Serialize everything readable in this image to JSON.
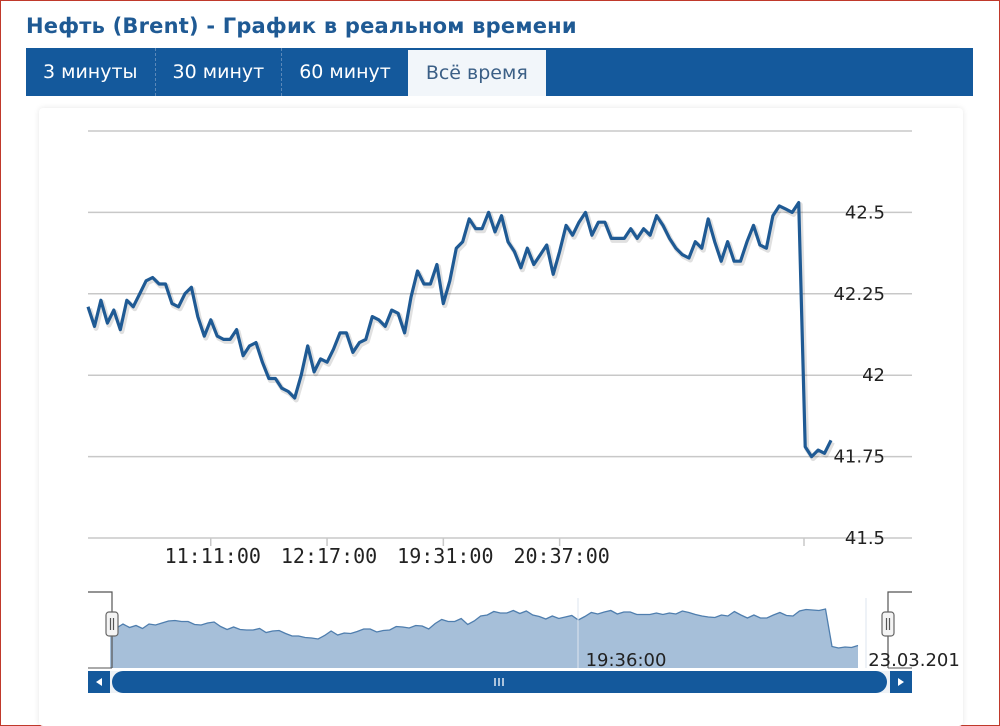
{
  "page_title": "Нефть (Brent) - График в реальном времени",
  "tabs": [
    {
      "label": "3 минуты",
      "active": false
    },
    {
      "label": "30 минут",
      "active": false
    },
    {
      "label": "60 минут",
      "active": false
    },
    {
      "label": "Всё время",
      "active": true
    }
  ],
  "colors": {
    "line": "#1f5a94",
    "tabbar": "#14599c",
    "navigator_fill": "#a6bfd9",
    "scrollbar": "#14599c"
  },
  "chart_data": {
    "type": "line",
    "ylim": [
      41.5,
      42.75
    ],
    "y_ticks": [
      "42.5",
      "42.25",
      "42",
      "41.75",
      "41.5"
    ],
    "y_tick_values": [
      42.5,
      42.25,
      42,
      41.75,
      41.5
    ],
    "x_tick_labels": [
      "11:11:00",
      "12:17:00",
      "19:31:00",
      "20:37:00"
    ],
    "x_tick_indices": [
      19,
      37,
      55,
      73
    ],
    "grid": true,
    "series": [
      {
        "values": [
          42.21,
          42.15,
          42.23,
          42.16,
          42.2,
          42.14,
          42.23,
          42.21,
          42.25,
          42.29,
          42.3,
          42.28,
          42.28,
          42.22,
          42.21,
          42.25,
          42.27,
          42.18,
          42.12,
          42.17,
          42.12,
          42.11,
          42.11,
          42.14,
          42.06,
          42.09,
          42.1,
          42.04,
          41.99,
          41.99,
          41.96,
          41.95,
          41.93,
          42.0,
          42.09,
          42.01,
          42.05,
          42.04,
          42.08,
          42.13,
          42.13,
          42.07,
          42.1,
          42.11,
          42.18,
          42.17,
          42.15,
          42.2,
          42.19,
          42.13,
          42.24,
          42.32,
          42.28,
          42.28,
          42.34,
          42.22,
          42.29,
          42.39,
          42.41,
          42.48,
          42.45,
          42.45,
          42.5,
          42.44,
          42.49,
          42.41,
          42.38,
          42.33,
          42.39,
          42.34,
          42.37,
          42.4,
          42.31,
          42.38,
          42.46,
          42.43,
          42.47,
          42.5,
          42.43,
          42.47,
          42.47,
          42.42,
          42.42,
          42.42,
          42.45,
          42.42,
          42.45,
          42.43,
          42.49,
          42.46,
          42.42,
          42.39,
          42.37,
          42.36,
          42.41,
          42.39,
          42.48,
          42.41,
          42.35,
          42.41,
          42.35,
          42.35,
          42.41,
          42.46,
          42.4,
          42.39,
          42.49,
          42.52,
          42.51,
          42.5,
          42.53,
          41.78,
          41.75,
          41.77,
          41.76,
          41.8
        ]
      }
    ],
    "navigator": {
      "tick_labels": [
        "19:36:00",
        "23.03.201"
      ]
    }
  }
}
